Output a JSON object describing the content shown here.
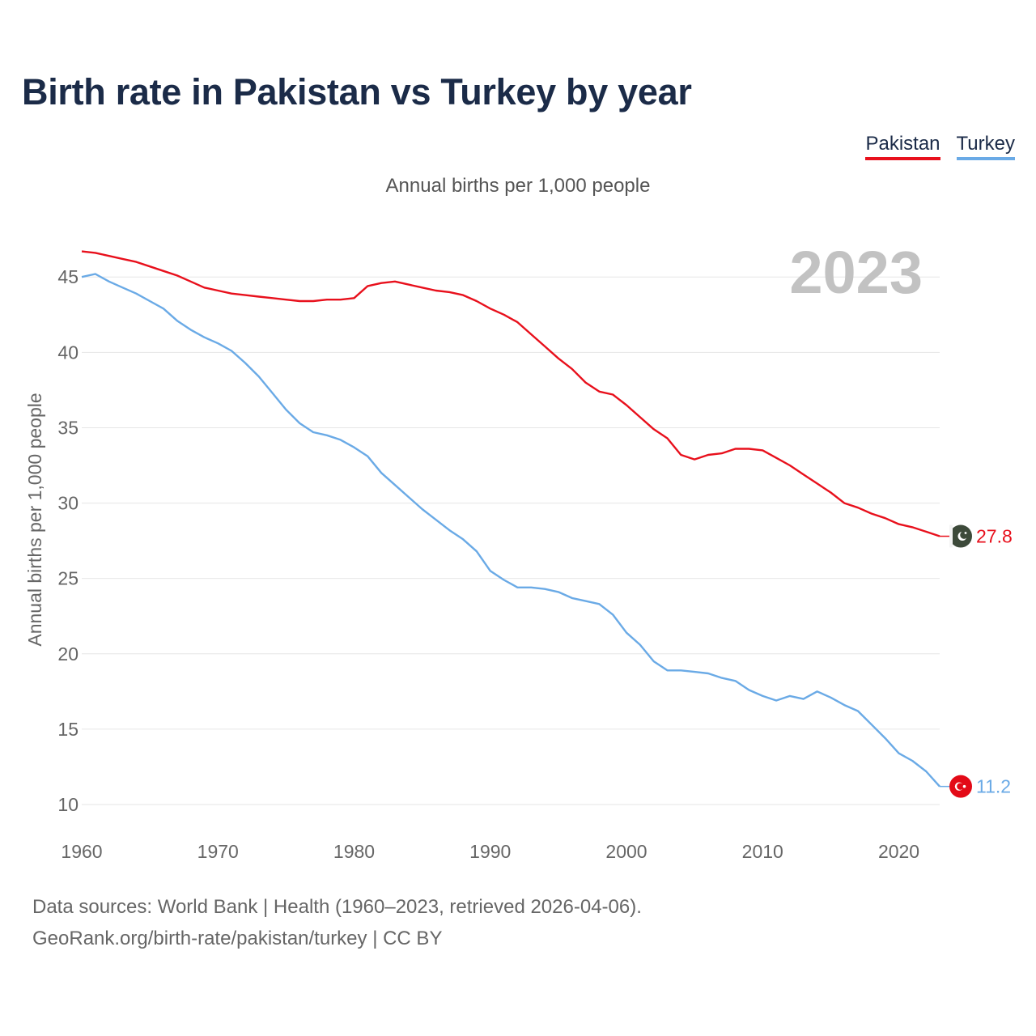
{
  "title": "Birth rate in Pakistan vs Turkey by year",
  "legend": [
    {
      "label": "Pakistan",
      "color": "#e8101c"
    },
    {
      "label": "Turkey",
      "color": "#6aaae6"
    }
  ],
  "footer": {
    "line1": "Data sources: World Bank | Health (1960–2023, retrieved 2026-04-06).",
    "line2": "GeoRank.org/birth-rate/pakistan/turkey | CC BY"
  },
  "chart_data": {
    "type": "line",
    "title": "Birth rate in Pakistan vs Turkey by year",
    "subtitle": "Annual births per 1,000 people",
    "xlabel": "",
    "ylabel": "Annual births per 1,000 people",
    "year_label": "2023",
    "xlim": [
      1960,
      2023
    ],
    "ylim": [
      10,
      47
    ],
    "xticks": [
      1960,
      1970,
      1980,
      1990,
      2000,
      2010,
      2020
    ],
    "yticks": [
      10,
      15,
      20,
      25,
      30,
      35,
      40,
      45
    ],
    "grid": true,
    "legend_position": "top-right",
    "x": [
      1960,
      1961,
      1962,
      1963,
      1964,
      1965,
      1966,
      1967,
      1968,
      1969,
      1970,
      1971,
      1972,
      1973,
      1974,
      1975,
      1976,
      1977,
      1978,
      1979,
      1980,
      1981,
      1982,
      1983,
      1984,
      1985,
      1986,
      1987,
      1988,
      1989,
      1990,
      1991,
      1992,
      1993,
      1994,
      1995,
      1996,
      1997,
      1998,
      1999,
      2000,
      2001,
      2002,
      2003,
      2004,
      2005,
      2006,
      2007,
      2008,
      2009,
      2010,
      2011,
      2012,
      2013,
      2014,
      2015,
      2016,
      2017,
      2018,
      2019,
      2020,
      2021,
      2022,
      2023
    ],
    "series": [
      {
        "name": "Pakistan",
        "color": "#e8101c",
        "end_label": "27.8",
        "flag": "pakistan-flag-icon",
        "values": [
          46.7,
          46.6,
          46.4,
          46.2,
          46.0,
          45.7,
          45.4,
          45.1,
          44.7,
          44.3,
          44.1,
          43.9,
          43.8,
          43.7,
          43.6,
          43.5,
          43.4,
          43.4,
          43.5,
          43.5,
          43.6,
          44.4,
          44.6,
          44.7,
          44.5,
          44.3,
          44.1,
          44.0,
          43.8,
          43.4,
          42.9,
          42.5,
          42.0,
          41.2,
          40.4,
          39.6,
          38.9,
          38.0,
          37.4,
          37.2,
          36.5,
          35.7,
          34.9,
          34.3,
          33.2,
          32.9,
          33.2,
          33.3,
          33.6,
          33.6,
          33.5,
          33.0,
          32.5,
          31.9,
          31.3,
          30.7,
          30.0,
          29.7,
          29.3,
          29.0,
          28.6,
          28.4,
          28.1,
          27.8
        ]
      },
      {
        "name": "Turkey",
        "color": "#6aaae6",
        "end_label": "11.2",
        "flag": "turkey-flag-icon",
        "values": [
          45.0,
          45.2,
          44.7,
          44.3,
          43.9,
          43.4,
          42.9,
          42.1,
          41.5,
          41.0,
          40.6,
          40.1,
          39.3,
          38.4,
          37.3,
          36.2,
          35.3,
          34.7,
          34.5,
          34.2,
          33.7,
          33.1,
          32.0,
          31.2,
          30.4,
          29.6,
          28.9,
          28.2,
          27.6,
          26.8,
          25.5,
          24.9,
          24.4,
          24.4,
          24.3,
          24.1,
          23.7,
          23.5,
          23.3,
          22.6,
          21.4,
          20.6,
          19.5,
          18.9,
          18.9,
          18.8,
          18.7,
          18.4,
          18.2,
          17.6,
          17.2,
          16.9,
          17.2,
          17.0,
          17.5,
          17.1,
          16.6,
          16.2,
          15.3,
          14.4,
          13.4,
          12.9,
          12.2,
          11.2
        ]
      }
    ]
  }
}
